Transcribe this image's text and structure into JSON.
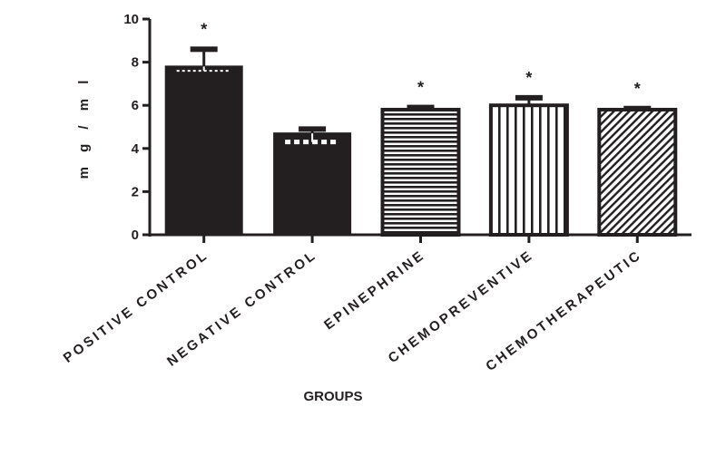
{
  "chart_data": {
    "type": "bar",
    "title": "",
    "xlabel": "GROUPS",
    "ylabel": "m g / m l",
    "ylim": [
      0,
      10
    ],
    "yticks": [
      "0",
      "2",
      "4",
      "6",
      "8",
      "10"
    ],
    "categories": [
      "POSITIVE CONTROL",
      "NEGATIVE CONTROL",
      "EPINEPHRINE",
      "CHEMOPREVENTIVE",
      "CHEMOTHERAPEUTIC"
    ],
    "values": [
      7.8,
      4.7,
      5.8,
      6.0,
      5.8
    ],
    "error_upper": [
      8.6,
      4.9,
      5.9,
      6.35,
      5.85
    ],
    "error_lower": [
      7.6,
      4.3,
      5.7,
      5.8,
      5.7
    ],
    "significance": [
      "*",
      "",
      "*",
      "*",
      "*"
    ],
    "fill_patterns": [
      "solid",
      "solid",
      "horizontal-stripes",
      "vertical-stripes",
      "diagonal-stripes"
    ],
    "colors": {
      "bar": "#231f20",
      "background": "#ffffff"
    },
    "grid": false,
    "legend": "none"
  }
}
